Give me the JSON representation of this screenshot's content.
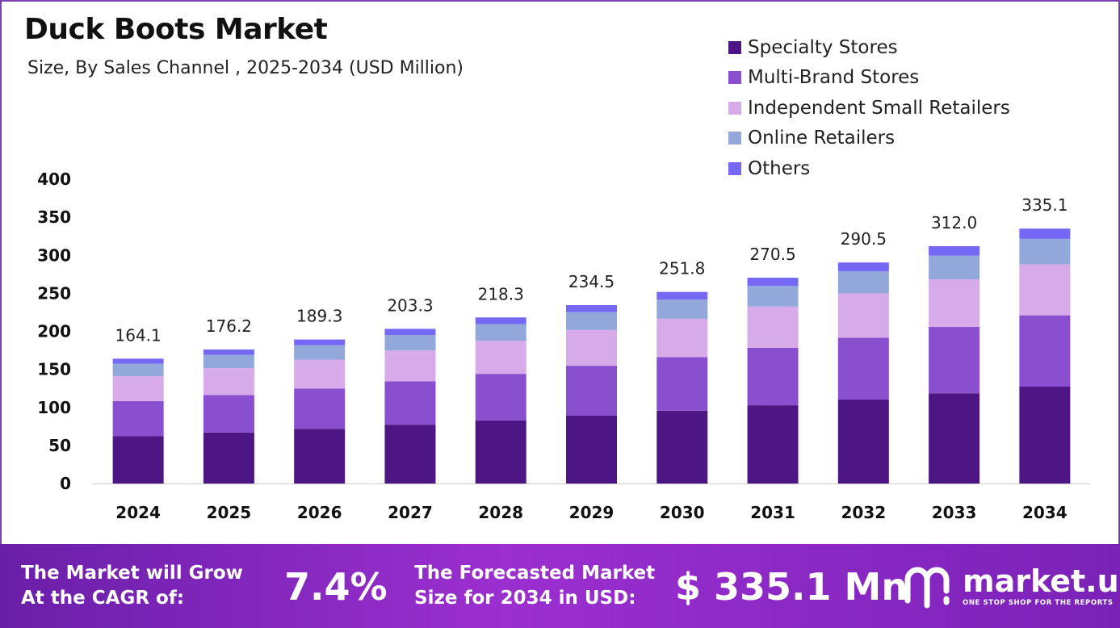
{
  "header": {
    "title": "Duck Boots Market",
    "subtitle": "Size, By Sales Channel , 2025-2034 (USD Million)"
  },
  "colors": {
    "specialty": "#4e1584",
    "multi_brand": "#8a4fcf",
    "independent": "#d7abea",
    "online": "#92a7da",
    "others": "#7468f4"
  },
  "chart_data": {
    "type": "bar",
    "stacked": true,
    "title": "Duck Boots Market",
    "subtitle": "Size, By Sales Channel , 2025-2034 (USD Million)",
    "xlabel": "",
    "ylabel": "",
    "ylim": [
      0,
      400
    ],
    "yticks": [
      "0",
      "50",
      "100",
      "150",
      "200",
      "250",
      "300",
      "350",
      "400"
    ],
    "legend_position": "top-right",
    "categories": [
      "2024",
      "2025",
      "2026",
      "2027",
      "2028",
      "2029",
      "2030",
      "2031",
      "2032",
      "2033",
      "2034"
    ],
    "totals": [
      "164.1",
      "176.2",
      "189.3",
      "203.3",
      "218.3",
      "234.5",
      "251.8",
      "270.5",
      "290.5",
      "312.0",
      "335.1"
    ],
    "series": [
      {
        "name": "Specialty Stores",
        "color": "#4e1584",
        "values": [
          62.4,
          67.0,
          71.9,
          77.3,
          83.0,
          89.1,
          95.7,
          102.8,
          110.4,
          118.6,
          127.3
        ]
      },
      {
        "name": "Multi-Brand Stores",
        "color": "#8a4fcf",
        "values": [
          46.0,
          49.3,
          53.0,
          56.9,
          61.1,
          65.7,
          70.5,
          75.7,
          81.3,
          87.4,
          93.8
        ]
      },
      {
        "name": "Independent Small Retailers",
        "color": "#d7abea",
        "values": [
          32.8,
          35.2,
          37.9,
          40.7,
          43.7,
          46.9,
          50.4,
          54.1,
          58.1,
          62.4,
          67.0
        ]
      },
      {
        "name": "Online Retailers",
        "color": "#92a7da",
        "values": [
          16.4,
          17.6,
          18.9,
          20.3,
          21.8,
          23.5,
          25.2,
          27.1,
          29.1,
          31.2,
          33.5
        ]
      },
      {
        "name": "Others",
        "color": "#7468f4",
        "values": [
          6.5,
          7.1,
          7.6,
          8.1,
          8.7,
          9.3,
          10.0,
          10.8,
          11.6,
          12.4,
          13.5
        ]
      }
    ]
  },
  "banner": {
    "cagr_label_line1": "The Market will Grow",
    "cagr_label_line2": "At the CAGR of:",
    "cagr_value": "7.4%",
    "forecast_label_line1": "The Forecasted Market",
    "forecast_label_line2": "Size for 2034 in USD:",
    "forecast_value": "$ 335.1 Mn",
    "logo_name": "market.us",
    "logo_tagline": "ONE STOP SHOP FOR THE REPORTS"
  }
}
